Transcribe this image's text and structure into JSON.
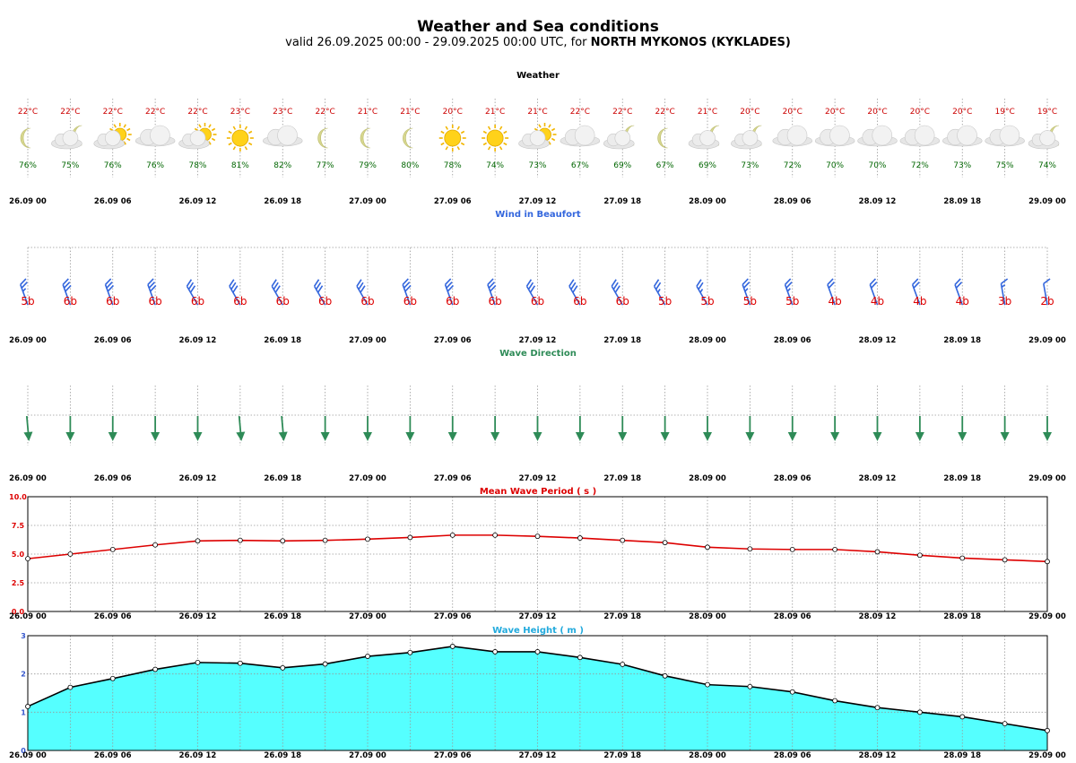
{
  "header": {
    "title": "Weather and Sea conditions",
    "subtitle_prefix": "valid 26.09.2025 00:00 - 29.09.2025 00:00 UTC, for ",
    "location": "NORTH MYKONOS (KYKLADES)"
  },
  "time_labels": [
    "26.09 00",
    "26.09 06",
    "26.09 12",
    "26.09 18",
    "27.09 00",
    "27.09 06",
    "27.09 12",
    "27.09 18",
    "28.09 00",
    "28.09 06",
    "28.09 12",
    "28.09 18",
    "29.09 00"
  ],
  "colors": {
    "weather_title": "#000000",
    "temperature": "#cc0000",
    "humidity": "#006600",
    "wind_title": "#3366dd",
    "wind_barb": "#3366dd",
    "beaufort": "#dd0000",
    "wave_dir_title": "#2e8b57",
    "wave_arrow": "#2e8b57",
    "period_title": "#dd0000",
    "period_line": "#dd0000",
    "height_title": "#22aadd",
    "height_fill": "#55ffff",
    "height_line": "#000000"
  },
  "chart_data": [
    {
      "type": "table",
      "title": "Weather",
      "temperature": [
        "22°C",
        "22°C",
        "22°C",
        "22°C",
        "22°C",
        "23°C",
        "23°C",
        "22°C",
        "21°C",
        "21°C",
        "20°C",
        "21°C",
        "21°C",
        "22°C",
        "22°C",
        "22°C",
        "21°C",
        "20°C",
        "20°C",
        "20°C",
        "20°C",
        "20°C",
        "20°C",
        "19°C",
        "19°C"
      ],
      "humidity": [
        "76%",
        "75%",
        "76%",
        "76%",
        "78%",
        "81%",
        "82%",
        "77%",
        "79%",
        "80%",
        "78%",
        "74%",
        "73%",
        "67%",
        "69%",
        "67%",
        "69%",
        "73%",
        "72%",
        "70%",
        "70%",
        "72%",
        "73%",
        "75%",
        "74%"
      ],
      "icons": [
        "moon-icon",
        "cloud-moon-icon",
        "cloud-sun-icon",
        "cloud-icon",
        "cloud-sun-icon",
        "sun-icon",
        "cloud-icon",
        "moon-icon",
        "moon-icon",
        "moon-icon",
        "sun-icon",
        "sun-icon",
        "cloud-sun-icon",
        "cloud-icon",
        "cloud-moon-icon",
        "moon-icon",
        "cloud-moon-icon",
        "cloud-moon-icon",
        "cloud-icon",
        "cloud-icon",
        "cloud-icon",
        "cloud-icon",
        "cloud-icon",
        "cloud-icon",
        "cloud-moon-icon"
      ]
    },
    {
      "type": "table",
      "title": "Wind in Beaufort",
      "beaufort": [
        "5b",
        "6b",
        "6b",
        "6b",
        "6b",
        "6b",
        "6b",
        "6b",
        "6b",
        "6b",
        "6b",
        "6b",
        "6b",
        "6b",
        "6b",
        "5b",
        "5b",
        "5b",
        "5b",
        "4b",
        "4b",
        "4b",
        "4b",
        "3b",
        "2b"
      ],
      "direction_deg": [
        340,
        340,
        340,
        340,
        330,
        330,
        330,
        330,
        330,
        340,
        340,
        340,
        330,
        330,
        330,
        330,
        330,
        340,
        340,
        340,
        340,
        340,
        340,
        350,
        350
      ]
    },
    {
      "type": "table",
      "title": "Wave Direction",
      "direction_deg": [
        355,
        0,
        0,
        0,
        0,
        355,
        355,
        0,
        0,
        0,
        0,
        0,
        0,
        0,
        0,
        0,
        0,
        0,
        0,
        0,
        0,
        0,
        0,
        0,
        0
      ]
    },
    {
      "type": "line",
      "title": "Mean Wave Period ( s )",
      "x": [
        "26.09 00",
        "26.09 03",
        "26.09 06",
        "26.09 09",
        "26.09 12",
        "26.09 15",
        "26.09 18",
        "26.09 21",
        "27.09 00",
        "27.09 03",
        "27.09 06",
        "27.09 09",
        "27.09 12",
        "27.09 15",
        "27.09 18",
        "27.09 21",
        "28.09 00",
        "28.09 03",
        "28.09 06",
        "28.09 09",
        "28.09 12",
        "28.09 15",
        "28.09 18",
        "28.09 21",
        "29.09 00"
      ],
      "values": [
        4.6,
        5.0,
        5.4,
        5.8,
        6.15,
        6.2,
        6.15,
        6.2,
        6.3,
        6.45,
        6.65,
        6.65,
        6.55,
        6.4,
        6.2,
        6.0,
        5.6,
        5.45,
        5.4,
        5.4,
        5.2,
        4.9,
        4.65,
        4.5,
        4.35
      ],
      "ylim": [
        0,
        10
      ],
      "yticks": [
        "0.0",
        "2.5",
        "5.0",
        "7.5",
        "10.0"
      ],
      "grid": true
    },
    {
      "type": "area",
      "title": "Wave Height ( m )",
      "x": [
        "26.09 00",
        "26.09 03",
        "26.09 06",
        "26.09 09",
        "26.09 12",
        "26.09 15",
        "26.09 18",
        "26.09 21",
        "27.09 00",
        "27.09 03",
        "27.09 06",
        "27.09 09",
        "27.09 12",
        "27.09 15",
        "27.09 18",
        "27.09 21",
        "28.09 00",
        "28.09 03",
        "28.09 06",
        "28.09 09",
        "28.09 12",
        "28.09 15",
        "28.09 18",
        "28.09 21",
        "29.09 00"
      ],
      "values": [
        1.15,
        1.65,
        1.88,
        2.12,
        2.3,
        2.28,
        2.16,
        2.26,
        2.46,
        2.56,
        2.72,
        2.58,
        2.58,
        2.43,
        2.25,
        1.95,
        1.72,
        1.67,
        1.53,
        1.3,
        1.12,
        1.0,
        0.88,
        0.7,
        0.52
      ],
      "ylim": [
        0,
        3
      ],
      "yticks": [
        "0",
        "1",
        "2",
        "3"
      ],
      "grid": true
    }
  ]
}
